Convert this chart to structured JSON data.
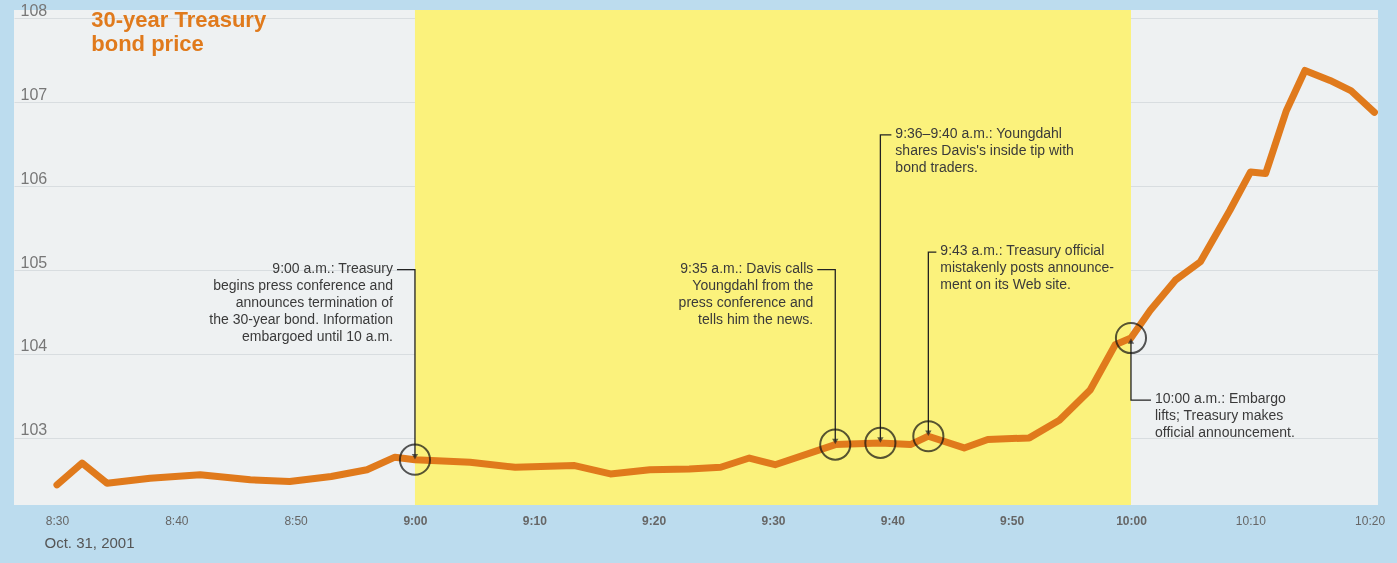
{
  "chart_data": {
    "type": "line",
    "title": "30-year Treasury\nbond price",
    "xlabel": "Oct. 31, 2001",
    "x": [
      8.5,
      8.535,
      8.57,
      8.63,
      8.7,
      8.77,
      8.825,
      8.883,
      8.933,
      8.972,
      9.0,
      9.077,
      9.14,
      9.223,
      9.273,
      9.328,
      9.383,
      9.427,
      9.467,
      9.503,
      9.587,
      9.65,
      9.692,
      9.717,
      9.767,
      9.8,
      9.858,
      9.9,
      9.943,
      9.978,
      10.0,
      10.027,
      10.062,
      10.097,
      10.138,
      10.167,
      10.188,
      10.217,
      10.243,
      10.278,
      10.307,
      10.34
    ],
    "series": [
      {
        "color": "#e07a1c",
        "values": [
          102.44,
          102.7,
          102.46,
          102.52,
          102.56,
          102.5,
          102.48,
          102.54,
          102.62,
          102.77,
          102.74,
          102.71,
          102.65,
          102.67,
          102.57,
          102.62,
          102.63,
          102.65,
          102.76,
          102.68,
          102.92,
          102.94,
          102.92,
          103.02,
          102.88,
          102.98,
          103.0,
          103.21,
          103.57,
          104.11,
          104.19,
          104.52,
          104.88,
          105.1,
          105.71,
          106.17,
          106.15,
          106.9,
          107.38,
          107.26,
          107.14,
          106.88
        ]
      }
    ],
    "xlim": [
      8.44,
      10.345
    ],
    "ylim": [
      102.2,
      108.1
    ],
    "xticks": [
      {
        "value": 8.5,
        "label": "8:30"
      },
      {
        "value": 8.6667,
        "label": "8:40"
      },
      {
        "value": 8.8333,
        "label": "8:50"
      },
      {
        "value": 9,
        "label": "9:00"
      },
      {
        "value": 9.1667,
        "label": "9:10"
      },
      {
        "value": 9.3333,
        "label": "9:20"
      },
      {
        "value": 9.5,
        "label": "9:30"
      },
      {
        "value": 9.6667,
        "label": "9:40"
      },
      {
        "value": 9.8333,
        "label": "9:50"
      },
      {
        "value": 10,
        "label": "10:00"
      },
      {
        "value": 10.1667,
        "label": "10:10"
      },
      {
        "value": 10.3333,
        "label": "10:20"
      }
    ],
    "yticks": [
      103,
      104,
      105,
      106,
      107,
      108
    ],
    "grid": "y",
    "marker": "none",
    "line_style": "solid",
    "bands": [
      {
        "axis": "x",
        "from": 9,
        "to": 10,
        "color": "#fbf27c"
      }
    ],
    "annotations": [
      {
        "text": "9:00 a.m.: Treasury\nbegins press conference and\nannounces termination of\nthe 30-year bond. Information\nembargoed until 10 a.m.",
        "x": 9.0,
        "y": 102.74
      },
      {
        "text": "9:35 a.m.: Davis calls\nYoungdahl from the\npress conference and\ntells him the news.",
        "x": 9.587,
        "y": 102.92
      },
      {
        "text": "9:36–9:40 a.m.: Youngdahl\nshares Davis's inside tip with\nbond traders.",
        "x": 9.65,
        "y": 102.94
      },
      {
        "text": "9:43 a.m.: Treasury official\nmistakenly posts announce-\nment on its Web site.",
        "x": 9.717,
        "y": 103.02
      },
      {
        "text": "10:00 a.m.: Embargo\nlifts; Treasury makes\nofficial announcement.",
        "x": 10.0,
        "y": 104.19
      }
    ]
  }
}
